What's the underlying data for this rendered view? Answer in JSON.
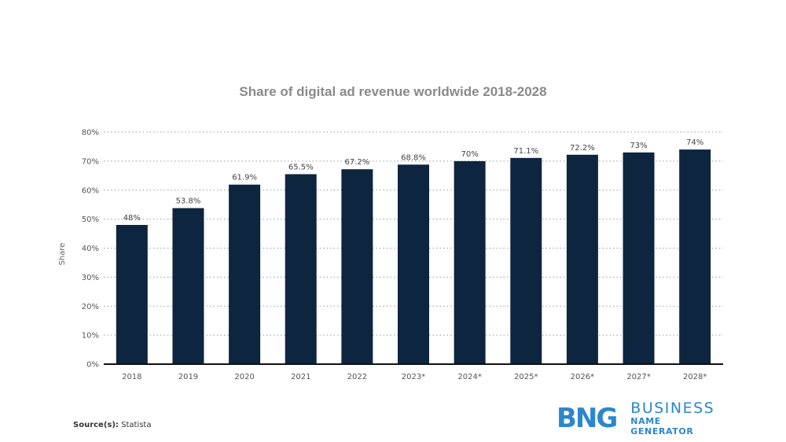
{
  "chart_data": {
    "type": "bar",
    "title": "Share of digital ad revenue worldwide 2018-2028",
    "ylabel": "Share",
    "xlabel": "",
    "categories": [
      "2018",
      "2019",
      "2020",
      "2021",
      "2022",
      "2023*",
      "2024*",
      "2025*",
      "2026*",
      "2027*",
      "2028*"
    ],
    "values": [
      48,
      53.8,
      61.9,
      65.5,
      67.2,
      68.8,
      70,
      71.1,
      72.2,
      73,
      74
    ],
    "data_labels": [
      "48%",
      "53.8%",
      "61.9%",
      "65.5%",
      "67.2%",
      "68.8%",
      "70%",
      "71.1%",
      "72.2%",
      "73%",
      "74%"
    ],
    "ylim": [
      0,
      80
    ],
    "yticks": [
      0,
      10,
      20,
      30,
      40,
      50,
      60,
      70,
      80
    ],
    "ytick_labels": [
      "0%",
      "10%",
      "20%",
      "30%",
      "40%",
      "50%",
      "60%",
      "70%",
      "80%"
    ],
    "grid": true,
    "bar_color": "#0e2540"
  },
  "footer": {
    "source_label": "Source(s):",
    "source_value": " Statista"
  },
  "logo": {
    "mark": "BNG",
    "line1": "BUSINESS",
    "line2": "NAME GENERATOR",
    "color": "#2c86cf"
  }
}
